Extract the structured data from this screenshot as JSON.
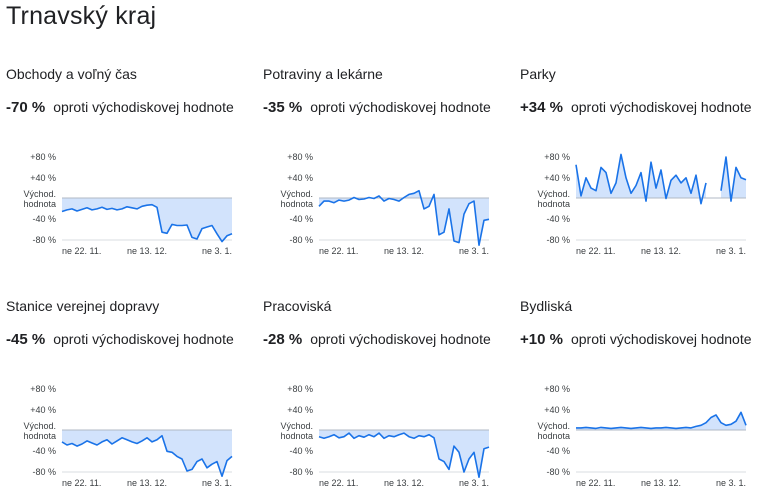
{
  "page": {
    "title": "Trnavský kraj"
  },
  "chart_data": [
    {
      "type": "line",
      "title": "Obchody a voľný čas",
      "summary_value": "-70 %",
      "summary_text": "oproti východiskovej hodnote",
      "y_tick_labels": [
        "+80 %",
        "+40 %",
        "Východ.",
        "hodnota",
        "-40 %",
        "-80 %"
      ],
      "x_tick_labels": [
        "ne 22. 11.",
        "ne 13. 12.",
        "ne 3. 1."
      ],
      "ylim": [
        -80,
        80
      ],
      "series": [
        {
          "values": [
            -25,
            -22,
            -20,
            -24,
            -21,
            -18,
            -22,
            -20,
            -17,
            -21,
            -19,
            -22,
            -20,
            -16,
            -18,
            -20,
            -15,
            -13,
            -12,
            -17,
            -65,
            -67,
            -50,
            -52,
            -52,
            -51,
            -75,
            -78,
            -58,
            -55,
            -52,
            -68,
            -83,
            -72,
            -68
          ]
        }
      ],
      "line_color": "#1a73e8",
      "fill_color": "#d2e3fc"
    },
    {
      "type": "line",
      "title": "Potraviny a lekárne",
      "summary_value": "-35 %",
      "summary_text": "oproti východiskovej hodnote",
      "y_tick_labels": [
        "+80 %",
        "+40 %",
        "Východ.",
        "hodnota",
        "-40 %",
        "-80 %"
      ],
      "x_tick_labels": [
        "ne 22. 11.",
        "ne 13. 12.",
        "ne 3. 1."
      ],
      "ylim": [
        -80,
        80
      ],
      "series": [
        {
          "values": [
            -15,
            -5,
            -5,
            -8,
            -3,
            -5,
            -3,
            2,
            -2,
            -1,
            2,
            0,
            5,
            -5,
            0,
            -2,
            -5,
            2,
            8,
            10,
            15,
            -20,
            -15,
            8,
            -70,
            -65,
            -20,
            -82,
            -85,
            -30,
            -10,
            -5,
            -90,
            -42,
            -40
          ]
        }
      ],
      "line_color": "#1a73e8",
      "fill_color": "#d2e3fc"
    },
    {
      "type": "line",
      "title": "Parky",
      "summary_value": "+34 %",
      "summary_text": "oproti východiskovej hodnote",
      "y_tick_labels": [
        "+80 %",
        "+40 %",
        "Východ.",
        "hodnota",
        "-40 %",
        "-80 %"
      ],
      "x_tick_labels": [
        "ne 22. 11.",
        "ne 13. 12.",
        "ne 3. 1."
      ],
      "ylim": [
        -80,
        80
      ],
      "series": [
        {
          "values": [
            65,
            5,
            40,
            20,
            15,
            60,
            50,
            10,
            30,
            85,
            40,
            10,
            25,
            50,
            -5,
            70,
            20,
            55,
            0,
            35,
            45,
            30,
            40,
            10,
            45,
            -10,
            30,
            null,
            null,
            15,
            80,
            -5,
            60,
            40,
            36
          ]
        }
      ],
      "line_color": "#1a73e8",
      "fill_color": "#d2e3fc"
    },
    {
      "type": "line",
      "title": "Stanice verejnej dopravy",
      "summary_value": "-45 %",
      "summary_text": "oproti východiskovej hodnote",
      "y_tick_labels": [
        "+80 %",
        "+40 %",
        "Východ.",
        "hodnota",
        "-40 %",
        "-80 %"
      ],
      "x_tick_labels": [
        "ne 22. 11.",
        "ne 13. 12.",
        "ne 3. 1."
      ],
      "ylim": [
        -80,
        80
      ],
      "series": [
        {
          "values": [
            -22,
            -28,
            -25,
            -30,
            -26,
            -20,
            -24,
            -28,
            -22,
            -18,
            -26,
            -20,
            -14,
            -18,
            -22,
            -25,
            -20,
            -14,
            -22,
            -18,
            -10,
            -40,
            -42,
            -50,
            -55,
            -78,
            -75,
            -60,
            -55,
            -72,
            -65,
            -60,
            -88,
            -58,
            -50
          ]
        }
      ],
      "line_color": "#1a73e8",
      "fill_color": "#d2e3fc"
    },
    {
      "type": "line",
      "title": "Pracoviská",
      "summary_value": "-28 %",
      "summary_text": "oproti východiskovej hodnote",
      "y_tick_labels": [
        "+80 %",
        "+40 %",
        "Východ.",
        "hodnota",
        "-40 %",
        "-80 %"
      ],
      "x_tick_labels": [
        "ne 22. 11.",
        "ne 13. 12.",
        "ne 3. 1."
      ],
      "ylim": [
        -80,
        80
      ],
      "series": [
        {
          "values": [
            -12,
            -15,
            -12,
            -8,
            -14,
            -12,
            -5,
            -15,
            -10,
            -13,
            -8,
            -12,
            -5,
            -15,
            -10,
            -12,
            -8,
            -5,
            -12,
            -15,
            -10,
            -12,
            -8,
            -14,
            -55,
            -60,
            -75,
            -30,
            -42,
            -80,
            -55,
            -42,
            -90,
            -35,
            -32
          ]
        }
      ],
      "line_color": "#1a73e8",
      "fill_color": "#d2e3fc"
    },
    {
      "type": "line",
      "title": "Bydliská",
      "summary_value": "+10 %",
      "summary_text": "oproti východiskovej hodnote",
      "y_tick_labels": [
        "+80 %",
        "+40 %",
        "Východ.",
        "hodnota",
        "-40 %",
        "-80 %"
      ],
      "x_tick_labels": [
        "ne 22. 11.",
        "ne 13. 12.",
        "ne 3. 1."
      ],
      "ylim": [
        -80,
        80
      ],
      "series": [
        {
          "values": [
            5,
            5,
            6,
            5,
            4,
            6,
            5,
            4,
            5,
            6,
            5,
            4,
            5,
            6,
            5,
            4,
            5,
            5,
            6,
            5,
            4,
            5,
            6,
            5,
            8,
            10,
            15,
            25,
            30,
            15,
            10,
            12,
            18,
            35,
            10
          ]
        }
      ],
      "line_color": "#1a73e8",
      "fill_color": "#d2e3fc"
    }
  ]
}
